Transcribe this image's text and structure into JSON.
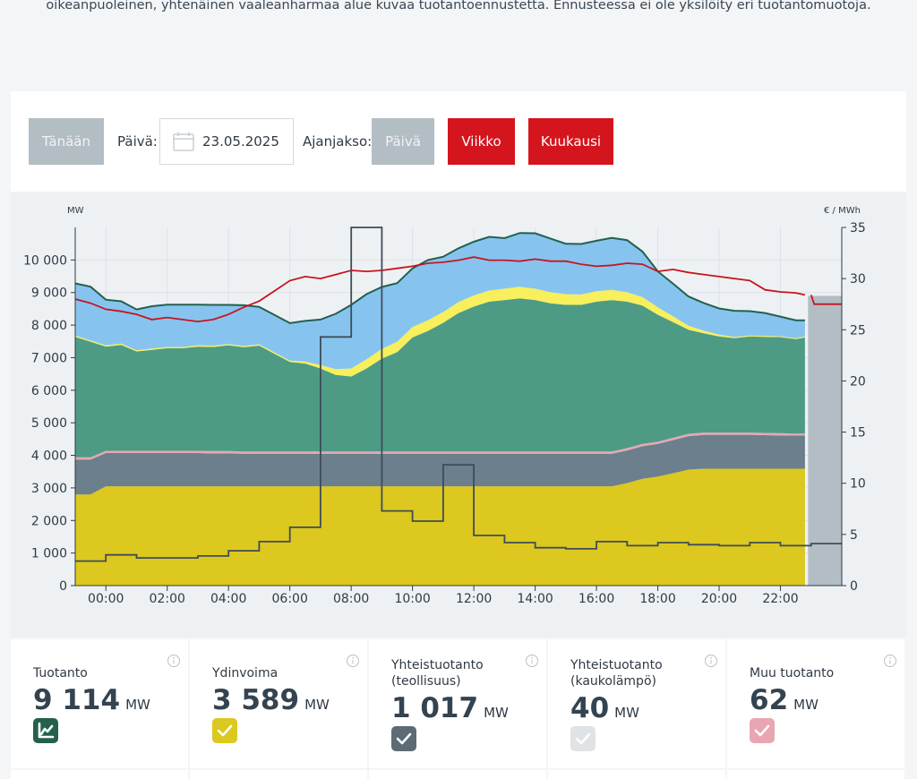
{
  "intro_text": "oikeanpuoleinen, yhtenäinen vaaleanharmaa alue kuvaa tuotantoennustetta. Ennusteessa ei ole yksilöity eri tuotantomuotoja.",
  "controls": {
    "today_label": "Tänään",
    "date_label": "Päivä:",
    "date_value": "23.05.2025",
    "period_label": "Ajanjakso:",
    "day_label": "Päivä",
    "week_label": "Viikko",
    "month_label": "Kuukausi"
  },
  "chart_data": {
    "type": "area",
    "left_axis_unit": "MW",
    "right_axis_unit": "€ / MWh",
    "ylim": [
      0,
      11000
    ],
    "y2lim": [
      0,
      35
    ],
    "y_ticks": [
      0,
      1000,
      2000,
      3000,
      4000,
      5000,
      6000,
      7000,
      8000,
      9000,
      10000
    ],
    "y_tick_labels": [
      "0",
      "1 000",
      "2 000",
      "3 000",
      "4 000",
      "5 000",
      "6 000",
      "7 000",
      "8 000",
      "9 000",
      "10 000"
    ],
    "y2_ticks": [
      0,
      5,
      10,
      15,
      20,
      25,
      30,
      35
    ],
    "x_tick_hours": [
      0,
      2,
      4,
      6,
      8,
      10,
      12,
      14,
      16,
      18,
      20,
      22
    ],
    "x_tick_labels": [
      "00:00",
      "02:00",
      "04:00",
      "06:00",
      "08:00",
      "10:00",
      "12:00",
      "14:00",
      "16:00",
      "18:00",
      "20:00",
      "22:00"
    ],
    "x_range_hours": [
      -1,
      24
    ],
    "x": [
      -1,
      -0.5,
      0,
      0.5,
      1,
      1.5,
      2,
      2.5,
      3,
      3.5,
      4,
      4.5,
      5,
      5.5,
      6,
      6.5,
      7,
      7.5,
      8,
      8.5,
      9,
      9.5,
      10,
      10.5,
      11,
      11.5,
      12,
      12.5,
      13,
      13.5,
      14,
      14.5,
      15,
      15.5,
      16,
      16.5,
      17,
      17.5,
      18,
      18.5,
      19,
      19.5,
      20,
      20.5,
      21,
      21.5,
      22,
      22.5,
      22.8
    ],
    "series": [
      {
        "color": "#dcc81e",
        "values": [
          2800,
          2800,
          3050,
          3050,
          3050,
          3050,
          3050,
          3050,
          3050,
          3050,
          3050,
          3050,
          3050,
          3050,
          3050,
          3050,
          3050,
          3050,
          3050,
          3050,
          3050,
          3050,
          3050,
          3050,
          3050,
          3050,
          3050,
          3050,
          3050,
          3050,
          3050,
          3050,
          3050,
          3050,
          3050,
          3050,
          3150,
          3280,
          3350,
          3450,
          3560,
          3590,
          3590,
          3590,
          3590,
          3590,
          3590,
          3590,
          3590
        ]
      },
      {
        "color": "#6b7f8d",
        "values": [
          1070,
          1070,
          1020,
          1020,
          1020,
          1020,
          1020,
          1020,
          1020,
          1010,
          1010,
          1000,
          1000,
          1000,
          1000,
          1000,
          1000,
          1000,
          1000,
          1000,
          1000,
          1000,
          1000,
          1000,
          1000,
          1000,
          1000,
          1000,
          1000,
          1000,
          1000,
          1000,
          1000,
          1000,
          1000,
          1000,
          1000,
          1000,
          1000,
          1020,
          1030,
          1040,
          1040,
          1040,
          1040,
          1030,
          1020,
          1017,
          1017
        ]
      },
      {
        "color": "#e8a6b3",
        "values": [
          70,
          70,
          70,
          70,
          70,
          70,
          70,
          70,
          70,
          70,
          70,
          70,
          70,
          70,
          70,
          70,
          70,
          70,
          70,
          70,
          70,
          70,
          70,
          70,
          70,
          70,
          70,
          70,
          70,
          70,
          70,
          70,
          70,
          70,
          70,
          70,
          70,
          70,
          70,
          70,
          70,
          70,
          70,
          70,
          70,
          70,
          70,
          62,
          62
        ]
      },
      {
        "color": "#4d9b85",
        "values": [
          3700,
          3550,
          3200,
          3250,
          3050,
          3100,
          3150,
          3150,
          3200,
          3200,
          3250,
          3200,
          3250,
          3000,
          2750,
          2700,
          2550,
          2350,
          2300,
          2550,
          2850,
          3050,
          3500,
          3700,
          3950,
          4250,
          4450,
          4600,
          4650,
          4700,
          4650,
          4550,
          4500,
          4500,
          4600,
          4650,
          4500,
          4250,
          3900,
          3550,
          3200,
          3050,
          2950,
          2900,
          2950,
          2950,
          2950,
          2900,
          2950
        ]
      },
      {
        "color": "#f7ef5c",
        "values": [
          40,
          40,
          40,
          40,
          40,
          40,
          40,
          40,
          40,
          40,
          40,
          40,
          40,
          40,
          40,
          60,
          100,
          180,
          250,
          280,
          300,
          320,
          320,
          330,
          330,
          340,
          340,
          340,
          350,
          360,
          350,
          340,
          330,
          320,
          320,
          310,
          290,
          260,
          230,
          180,
          120,
          80,
          60,
          40,
          30,
          30,
          30,
          30,
          30
        ]
      },
      {
        "color": "#86c4ef",
        "values": [
          1600,
          1650,
          1400,
          1300,
          1250,
          1300,
          1300,
          1300,
          1250,
          1250,
          1200,
          1250,
          1150,
          1150,
          1150,
          1250,
          1400,
          1700,
          1950,
          2000,
          1900,
          1800,
          1800,
          1850,
          1700,
          1650,
          1650,
          1650,
          1550,
          1650,
          1700,
          1650,
          1550,
          1550,
          1550,
          1600,
          1600,
          1400,
          1100,
          1000,
          900,
          850,
          800,
          800,
          750,
          700,
          600,
          550,
          500
        ]
      }
    ],
    "price": {
      "color": "#c8141e",
      "x": [
        -1,
        -0.5,
        0,
        0.5,
        1,
        1.5,
        2,
        2.5,
        3,
        3.5,
        4,
        4.5,
        5,
        5.5,
        6,
        6.5,
        7,
        7.5,
        8,
        8.5,
        9,
        9.5,
        10,
        10.5,
        11,
        11.5,
        12,
        12.5,
        13,
        13.5,
        14,
        14.5,
        15,
        15.5,
        16,
        16.5,
        17,
        17.5,
        18,
        18.5,
        19,
        19.5,
        20,
        20.5,
        21,
        21.5,
        22,
        22.5,
        22.8
      ],
      "values": [
        28.0,
        27.6,
        27.0,
        26.8,
        26.5,
        26.0,
        26.2,
        26.0,
        25.8,
        26.0,
        26.5,
        27.2,
        27.8,
        28.8,
        29.8,
        30.2,
        30.0,
        30.4,
        30.8,
        30.7,
        30.8,
        31.0,
        31.2,
        31.5,
        31.6,
        31.8,
        32.1,
        31.8,
        31.8,
        31.7,
        31.9,
        31.7,
        31.7,
        31.4,
        31.2,
        31.3,
        31.5,
        31.4,
        30.7,
        30.9,
        30.6,
        30.4,
        30.2,
        30.0,
        29.8,
        28.9,
        28.7,
        28.6,
        28.4
      ]
    },
    "price_forecast": {
      "color": "#c8141e",
      "x": [
        23.0,
        23.1,
        24
      ],
      "values": [
        28.4,
        27.5,
        27.5
      ]
    },
    "step_price": {
      "color": "#3e4c57",
      "x": [
        -1,
        0,
        1,
        2,
        3,
        4,
        5,
        6,
        7,
        8,
        9,
        10,
        11,
        12,
        13,
        14,
        15,
        16,
        17,
        18,
        19,
        20,
        21,
        22,
        23
      ],
      "values": [
        2.4,
        3.0,
        2.7,
        2.7,
        2.9,
        3.4,
        4.3,
        5.7,
        24.3,
        35.0,
        7.3,
        6.3,
        11.8,
        4.9,
        4.2,
        3.7,
        3.6,
        4.3,
        3.9,
        4.2,
        4.0,
        3.9,
        4.2,
        3.9,
        4.1
      ]
    },
    "forecast": {
      "color": "#b3bdc4",
      "x_start": 22.9,
      "x_end": 24,
      "value": 8900
    }
  },
  "stats": [
    {
      "title": "Tuotanto",
      "value": "9 114",
      "unit": "MW",
      "badge_color": "#24604e",
      "icon": "chart-line-icon"
    },
    {
      "title": "Ydinvoima",
      "value": "3 589",
      "unit": "MW",
      "badge_color": "#dcc81e",
      "icon": "check-icon"
    },
    {
      "title": "Yhteistuotanto (teollisuus)",
      "value": "1 017",
      "unit": "MW",
      "badge_color": "#5d6b75",
      "icon": "check-icon"
    },
    {
      "title": "Yhteistuotanto (kaukolämpö)",
      "value": "40",
      "unit": "MW",
      "badge_color": "#dfe3e6",
      "icon": "check-icon"
    },
    {
      "title": "Muu tuotanto",
      "value": "62",
      "unit": "MW",
      "badge_color": "#e8a6b3",
      "icon": "check-icon"
    }
  ]
}
